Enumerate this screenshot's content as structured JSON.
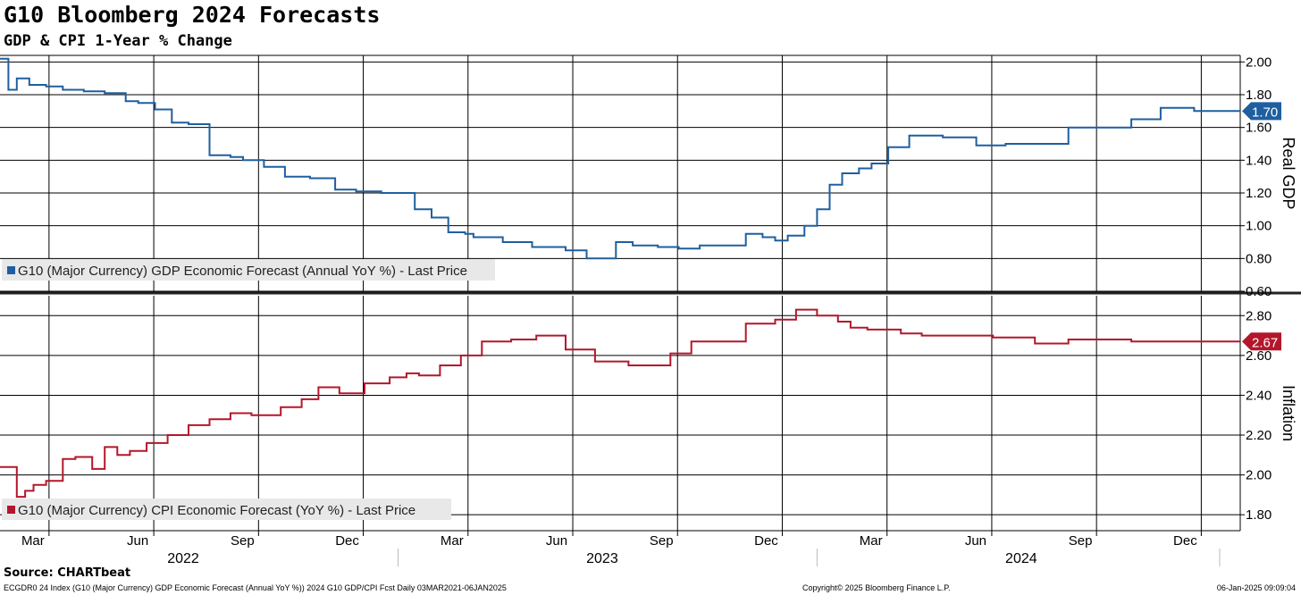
{
  "header": {
    "title": "G10 Bloomberg 2024 Forecasts",
    "subtitle": "GDP & CPI 1-Year % Change"
  },
  "footer": {
    "source": "Source: CHARTbeat",
    "index_info": "ECGDR0 24 Index (G10 (Major Currency) GDP Economic Forecast (Annual YoY %)) 2024 G10 GDP/CPI Fcst  Daily 03MAR2021-06JAN2025",
    "copyright": "Copyright© 2025 Bloomberg Finance L.P.",
    "timestamp": "06-Jan-2025 09:09:04"
  },
  "colors": {
    "gdp": "#1f5fa0",
    "cpi": "#b3172b",
    "grid": "#000000"
  },
  "chart_data": [
    {
      "type": "line",
      "name": "gdp-panel",
      "axis_label": "Real GDP",
      "legend": "G10 (Major Currency) GDP Economic Forecast (Annual YoY %) - Last Price",
      "last_value": "1.70",
      "ylim": [
        0.6,
        2.04
      ],
      "y_ticks": [
        "0.60",
        "0.80",
        "1.00",
        "1.20",
        "1.40",
        "1.60",
        "1.80",
        "2.00"
      ],
      "x_range": [
        2022.05,
        2025.01
      ],
      "x": [
        2022.05,
        2022.07,
        2022.09,
        2022.12,
        2022.16,
        2022.2,
        2022.25,
        2022.3,
        2022.35,
        2022.38,
        2022.42,
        2022.46,
        2022.5,
        2022.55,
        2022.6,
        2022.63,
        2022.68,
        2022.73,
        2022.79,
        2022.85,
        2022.9,
        2022.96,
        2023.0,
        2023.04,
        2023.08,
        2023.12,
        2023.16,
        2023.18,
        2023.25,
        2023.32,
        2023.4,
        2023.45,
        2023.48,
        2023.52,
        2023.56,
        2023.62,
        2023.67,
        2023.72,
        2023.77,
        2023.83,
        2023.87,
        2023.9,
        2023.93,
        2023.97,
        2024.0,
        2024.03,
        2024.06,
        2024.1,
        2024.13,
        2024.17,
        2024.22,
        2024.3,
        2024.38,
        2024.45,
        2024.52,
        2024.6,
        2024.66,
        2024.75,
        2024.8,
        2024.82,
        2024.9,
        2025.01
      ],
      "y": [
        2.02,
        1.83,
        1.9,
        1.86,
        1.85,
        1.83,
        1.82,
        1.81,
        1.76,
        1.75,
        1.71,
        1.63,
        1.62,
        1.43,
        1.42,
        1.4,
        1.36,
        1.3,
        1.29,
        1.22,
        1.21,
        1.2,
        1.2,
        1.1,
        1.05,
        0.96,
        0.95,
        0.93,
        0.9,
        0.87,
        0.85,
        0.8,
        0.8,
        0.9,
        0.88,
        0.87,
        0.86,
        0.88,
        0.88,
        0.95,
        0.93,
        0.91,
        0.94,
        1.0,
        1.1,
        1.25,
        1.32,
        1.35,
        1.38,
        1.48,
        1.55,
        1.54,
        1.49,
        1.5,
        1.5,
        1.6,
        1.6,
        1.65,
        1.65,
        1.72,
        1.7,
        1.7
      ]
    },
    {
      "type": "line",
      "name": "cpi-panel",
      "axis_label": "Inflation",
      "legend": "G10 (Major Currency) CPI Economic Forecast (YoY %) - Last Price",
      "last_value": "2.67",
      "ylim": [
        1.72,
        2.9
      ],
      "y_ticks": [
        "1.80",
        "2.00",
        "2.20",
        "2.40",
        "2.60",
        "2.80"
      ],
      "x_range": [
        2022.05,
        2025.01
      ],
      "x": [
        2022.05,
        2022.08,
        2022.09,
        2022.11,
        2022.13,
        2022.16,
        2022.2,
        2022.23,
        2022.27,
        2022.3,
        2022.33,
        2022.36,
        2022.4,
        2022.45,
        2022.5,
        2022.55,
        2022.6,
        2022.65,
        2022.72,
        2022.77,
        2022.81,
        2022.86,
        2022.92,
        2022.98,
        2023.02,
        2023.05,
        2023.1,
        2023.15,
        2023.2,
        2023.27,
        2023.33,
        2023.4,
        2023.47,
        2023.55,
        2023.62,
        2023.65,
        2023.7,
        2023.77,
        2023.83,
        2023.9,
        2023.95,
        2023.97,
        2024.0,
        2024.05,
        2024.08,
        2024.12,
        2024.17,
        2024.2,
        2024.25,
        2024.3,
        2024.37,
        2024.42,
        2024.48,
        2024.52,
        2024.55,
        2024.6,
        2024.66,
        2024.75,
        2024.82,
        2024.85,
        2024.9,
        2025.01
      ],
      "y": [
        2.04,
        2.04,
        1.89,
        1.92,
        1.95,
        1.97,
        2.08,
        2.09,
        2.03,
        2.14,
        2.1,
        2.12,
        2.16,
        2.2,
        2.25,
        2.28,
        2.31,
        2.3,
        2.34,
        2.38,
        2.44,
        2.41,
        2.46,
        2.49,
        2.51,
        2.5,
        2.55,
        2.6,
        2.67,
        2.68,
        2.7,
        2.63,
        2.57,
        2.55,
        2.55,
        2.61,
        2.67,
        2.67,
        2.76,
        2.78,
        2.83,
        2.83,
        2.8,
        2.77,
        2.74,
        2.73,
        2.73,
        2.71,
        2.7,
        2.7,
        2.7,
        2.69,
        2.69,
        2.66,
        2.66,
        2.68,
        2.68,
        2.67,
        2.67,
        2.67,
        2.67,
        2.67
      ]
    }
  ],
  "x_axis": {
    "months": [
      {
        "label": "Mar",
        "t": 2022.167
      },
      {
        "label": "Jun",
        "t": 2022.417
      },
      {
        "label": "Sep",
        "t": 2022.667
      },
      {
        "label": "Dec",
        "t": 2022.917
      },
      {
        "label": "Mar",
        "t": 2023.167
      },
      {
        "label": "Jun",
        "t": 2023.417
      },
      {
        "label": "Sep",
        "t": 2023.667
      },
      {
        "label": "Dec",
        "t": 2023.917
      },
      {
        "label": "Mar",
        "t": 2024.167
      },
      {
        "label": "Jun",
        "t": 2024.417
      },
      {
        "label": "Sep",
        "t": 2024.667
      },
      {
        "label": "Dec",
        "t": 2024.917
      }
    ],
    "years": [
      {
        "label": "2022",
        "center": 2022.5
      },
      {
        "label": "2023",
        "center": 2023.5
      },
      {
        "label": "2024",
        "center": 2024.5
      }
    ],
    "year_boundaries": [
      2023.0,
      2024.0,
      2025.0
    ]
  }
}
